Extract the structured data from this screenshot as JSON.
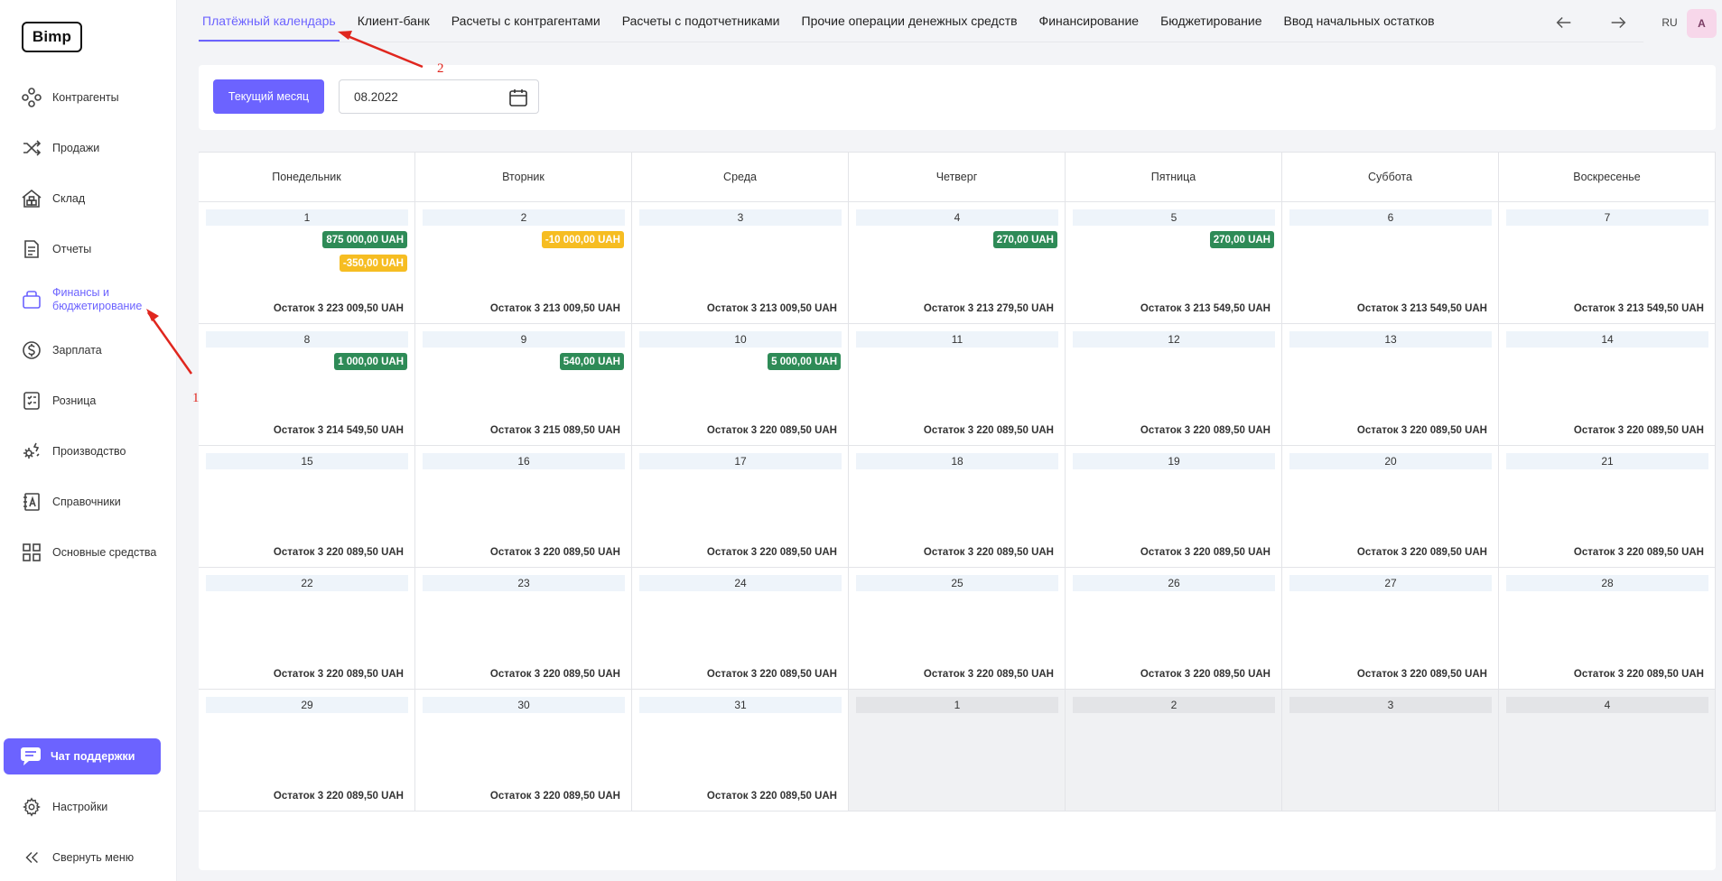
{
  "sidebar": {
    "logo": "Bimp",
    "items": [
      {
        "label": "Контрагенты",
        "icon": "counterparties-icon"
      },
      {
        "label": "Продажи",
        "icon": "shuffle-icon"
      },
      {
        "label": "Склад",
        "icon": "warehouse-icon"
      },
      {
        "label": "Отчеты",
        "icon": "document-icon"
      },
      {
        "label": "Финансы и бюджетирование",
        "icon": "wallet-icon"
      },
      {
        "label": "Зарплата",
        "icon": "dollar-coin-icon"
      },
      {
        "label": "Розница",
        "icon": "checklist-icon"
      },
      {
        "label": "Производство",
        "icon": "production-icon"
      },
      {
        "label": "Справочники",
        "icon": "dictionary-icon"
      },
      {
        "label": "Основные средства",
        "icon": "grid-icon"
      }
    ],
    "chat_label": "Чат поддержки",
    "settings_label": "Настройки",
    "collapse_label": "Свернуть меню"
  },
  "topbar": {
    "tabs": [
      "Платёжный календарь",
      "Клиент-банк",
      "Расчеты с контрагентами",
      "Расчеты с подотчетниками",
      "Прочие операции денежных средств",
      "Финансирование",
      "Бюджетирование",
      "Ввод начальных остатков"
    ],
    "lang": "RU",
    "avatar": "A"
  },
  "filter": {
    "current_month_label": "Текущий месяц",
    "date_value": "08.2022"
  },
  "calendar": {
    "weekdays": [
      "Понедельник",
      "Вторник",
      "Среда",
      "Четверг",
      "Пятница",
      "Суббота",
      "Воскресенье"
    ],
    "weeks": [
      [
        {
          "day": "1",
          "balance": "Остаток 3 223 009,50 UAH",
          "ops": [
            {
              "amount": "875 000,00 UAH",
              "type": "in"
            },
            {
              "amount": "-350,00 UAH",
              "type": "out"
            }
          ]
        },
        {
          "day": "2",
          "balance": "Остаток 3 213 009,50 UAH",
          "ops": [
            {
              "amount": "-10 000,00 UAH",
              "type": "out"
            }
          ]
        },
        {
          "day": "3",
          "balance": "Остаток 3 213 009,50 UAH",
          "ops": []
        },
        {
          "day": "4",
          "balance": "Остаток 3 213 279,50 UAH",
          "ops": [
            {
              "amount": "270,00 UAH",
              "type": "in"
            }
          ]
        },
        {
          "day": "5",
          "balance": "Остаток 3 213 549,50 UAH",
          "ops": [
            {
              "amount": "270,00 UAH",
              "type": "in"
            }
          ]
        },
        {
          "day": "6",
          "balance": "Остаток 3 213 549,50 UAH",
          "ops": []
        },
        {
          "day": "7",
          "balance": "Остаток 3 213 549,50 UAH",
          "ops": []
        }
      ],
      [
        {
          "day": "8",
          "balance": "Остаток 3 214 549,50 UAH",
          "ops": [
            {
              "amount": "1 000,00 UAH",
              "type": "in"
            }
          ]
        },
        {
          "day": "9",
          "balance": "Остаток 3 215 089,50 UAH",
          "ops": [
            {
              "amount": "540,00 UAH",
              "type": "in"
            }
          ]
        },
        {
          "day": "10",
          "balance": "Остаток 3 220 089,50 UAH",
          "ops": [
            {
              "amount": "5 000,00 UAH",
              "type": "in"
            }
          ]
        },
        {
          "day": "11",
          "balance": "Остаток 3 220 089,50 UAH",
          "ops": []
        },
        {
          "day": "12",
          "balance": "Остаток 3 220 089,50 UAH",
          "ops": []
        },
        {
          "day": "13",
          "balance": "Остаток 3 220 089,50 UAH",
          "ops": []
        },
        {
          "day": "14",
          "balance": "Остаток 3 220 089,50 UAH",
          "ops": []
        }
      ],
      [
        {
          "day": "15",
          "balance": "Остаток 3 220 089,50 UAH",
          "ops": []
        },
        {
          "day": "16",
          "balance": "Остаток 3 220 089,50 UAH",
          "ops": []
        },
        {
          "day": "17",
          "balance": "Остаток 3 220 089,50 UAH",
          "ops": []
        },
        {
          "day": "18",
          "balance": "Остаток 3 220 089,50 UAH",
          "ops": []
        },
        {
          "day": "19",
          "balance": "Остаток 3 220 089,50 UAH",
          "ops": []
        },
        {
          "day": "20",
          "balance": "Остаток 3 220 089,50 UAH",
          "ops": []
        },
        {
          "day": "21",
          "balance": "Остаток 3 220 089,50 UAH",
          "ops": []
        }
      ],
      [
        {
          "day": "22",
          "balance": "Остаток 3 220 089,50 UAH",
          "ops": []
        },
        {
          "day": "23",
          "balance": "Остаток 3 220 089,50 UAH",
          "ops": []
        },
        {
          "day": "24",
          "balance": "Остаток 3 220 089,50 UAH",
          "ops": []
        },
        {
          "day": "25",
          "balance": "Остаток 3 220 089,50 UAH",
          "ops": []
        },
        {
          "day": "26",
          "balance": "Остаток 3 220 089,50 UAH",
          "ops": []
        },
        {
          "day": "27",
          "balance": "Остаток 3 220 089,50 UAH",
          "ops": []
        },
        {
          "day": "28",
          "balance": "Остаток 3 220 089,50 UAH",
          "ops": []
        }
      ],
      [
        {
          "day": "29",
          "balance": "Остаток 3 220 089,50 UAH",
          "ops": []
        },
        {
          "day": "30",
          "balance": "Остаток 3 220 089,50 UAH",
          "ops": []
        },
        {
          "day": "31",
          "balance": "Остаток 3 220 089,50 UAH",
          "ops": []
        },
        {
          "day": "1",
          "balance": "",
          "ops": [],
          "outside": true
        },
        {
          "day": "2",
          "balance": "",
          "ops": [],
          "outside": true
        },
        {
          "day": "3",
          "balance": "",
          "ops": [],
          "outside": true
        },
        {
          "day": "4",
          "balance": "",
          "ops": [],
          "outside": true
        }
      ]
    ]
  },
  "annotations": {
    "marker_1": "1",
    "marker_2": "2"
  },
  "colors": {
    "accent": "#6c63ff",
    "income": "#2e8b57",
    "expense": "#f6bd22",
    "annotation": "#e0261e"
  }
}
